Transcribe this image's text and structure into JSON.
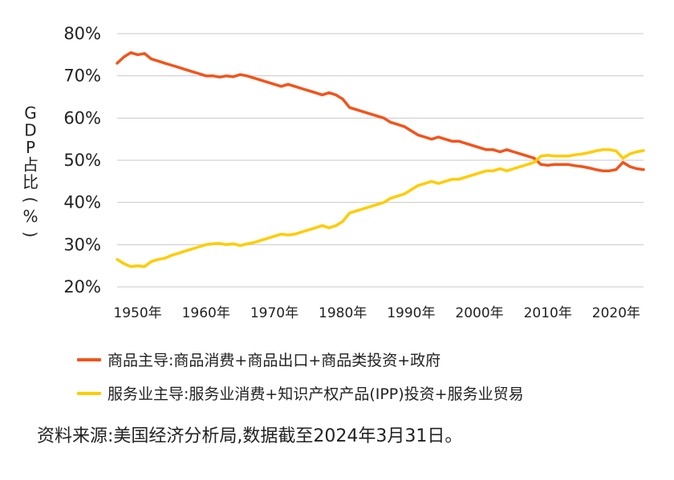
{
  "chart_data": {
    "type": "line",
    "ylabel": "GDP占比(%)",
    "ylim": [
      20,
      80
    ],
    "y_ticks": [
      "20%",
      "30%",
      "40%",
      "50%",
      "60%",
      "70%",
      "80%"
    ],
    "y_tick_values": [
      20,
      30,
      40,
      50,
      60,
      70,
      80
    ],
    "x_ticks": [
      "1950年",
      "1960年",
      "1970年",
      "1980年",
      "1990年",
      "2000年",
      "2010年",
      "2020年"
    ],
    "x_tick_values": [
      1950,
      1960,
      1970,
      1980,
      1990,
      2000,
      2010,
      2020
    ],
    "xlim": [
      1947,
      2024
    ],
    "grid": true,
    "legend_position": "bottom",
    "series": [
      {
        "name": "商品主导:商品消费+商品出口+商品类投资+政府",
        "color": "#f2541b",
        "x": [
          1947,
          1948,
          1949,
          1950,
          1951,
          1952,
          1953,
          1954,
          1955,
          1956,
          1957,
          1958,
          1959,
          1960,
          1961,
          1962,
          1963,
          1964,
          1965,
          1966,
          1967,
          1968,
          1969,
          1970,
          1971,
          1972,
          1973,
          1974,
          1975,
          1976,
          1977,
          1978,
          1979,
          1980,
          1981,
          1982,
          1983,
          1984,
          1985,
          1986,
          1987,
          1988,
          1989,
          1990,
          1991,
          1992,
          1993,
          1994,
          1995,
          1996,
          1997,
          1998,
          1999,
          2000,
          2001,
          2002,
          2003,
          2004,
          2005,
          2006,
          2007,
          2008,
          2009,
          2010,
          2011,
          2012,
          2013,
          2014,
          2015,
          2016,
          2017,
          2018,
          2019,
          2020,
          2021,
          2022,
          2023,
          2024
        ],
        "values": [
          73.0,
          74.5,
          75.5,
          75.0,
          75.3,
          74.0,
          73.5,
          73.0,
          72.5,
          72.0,
          71.5,
          71.0,
          70.5,
          70.0,
          70.0,
          69.7,
          70.0,
          69.8,
          70.3,
          70.0,
          69.5,
          69.0,
          68.5,
          68.0,
          67.5,
          68.0,
          67.5,
          67.0,
          66.5,
          66.0,
          65.5,
          66.0,
          65.5,
          64.5,
          62.5,
          62.0,
          61.5,
          61.0,
          60.5,
          60.0,
          59.0,
          58.5,
          58.0,
          57.0,
          56.0,
          55.5,
          55.0,
          55.5,
          55.0,
          54.5,
          54.5,
          54.0,
          53.5,
          53.0,
          52.5,
          52.5,
          52.0,
          52.5,
          52.0,
          51.5,
          51.0,
          50.5,
          49.0,
          48.8,
          49.0,
          49.0,
          49.0,
          48.7,
          48.5,
          48.2,
          47.8,
          47.5,
          47.5,
          47.8,
          49.5,
          48.5,
          48.0,
          47.8
        ]
      },
      {
        "name": "服务业主导:服务业消费+知识产权产品(IPP)投资+服务业贸易",
        "color": "#ffcc00",
        "x": [
          1947,
          1948,
          1949,
          1950,
          1951,
          1952,
          1953,
          1954,
          1955,
          1956,
          1957,
          1958,
          1959,
          1960,
          1961,
          1962,
          1963,
          1964,
          1965,
          1966,
          1967,
          1968,
          1969,
          1970,
          1971,
          1972,
          1973,
          1974,
          1975,
          1976,
          1977,
          1978,
          1979,
          1980,
          1981,
          1982,
          1983,
          1984,
          1985,
          1986,
          1987,
          1988,
          1989,
          1990,
          1991,
          1992,
          1993,
          1994,
          1995,
          1996,
          1997,
          1998,
          1999,
          2000,
          2001,
          2002,
          2003,
          2004,
          2005,
          2006,
          2007,
          2008,
          2009,
          2010,
          2011,
          2012,
          2013,
          2014,
          2015,
          2016,
          2017,
          2018,
          2019,
          2020,
          2021,
          2022,
          2023,
          2024
        ],
        "values": [
          26.5,
          25.5,
          24.8,
          25.0,
          24.8,
          26.0,
          26.5,
          26.8,
          27.5,
          28.0,
          28.5,
          29.0,
          29.5,
          30.0,
          30.2,
          30.3,
          30.0,
          30.2,
          29.8,
          30.2,
          30.5,
          31.0,
          31.5,
          32.0,
          32.5,
          32.3,
          32.5,
          33.0,
          33.5,
          34.0,
          34.5,
          34.0,
          34.5,
          35.5,
          37.5,
          38.0,
          38.5,
          39.0,
          39.5,
          40.0,
          41.0,
          41.5,
          42.0,
          43.0,
          44.0,
          44.5,
          45.0,
          44.5,
          45.0,
          45.5,
          45.5,
          46.0,
          46.5,
          47.0,
          47.5,
          47.5,
          48.0,
          47.5,
          48.0,
          48.5,
          49.0,
          49.5,
          51.0,
          51.2,
          51.0,
          51.0,
          51.0,
          51.3,
          51.5,
          51.8,
          52.2,
          52.5,
          52.5,
          52.2,
          50.5,
          51.5,
          52.0,
          52.3
        ]
      }
    ]
  },
  "source_text": "资料来源:美国经济分析局,数据截至2024年3月31日。"
}
